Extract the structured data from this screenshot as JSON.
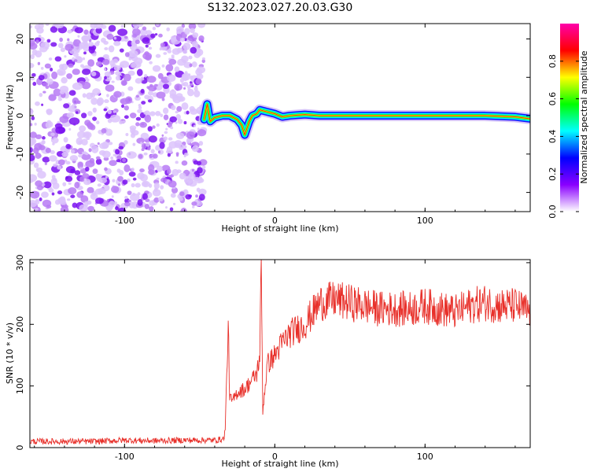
{
  "title": "S132.2023.027.20.03.G30",
  "chart_data": [
    {
      "type": "heatmap",
      "xlabel": "Height of straight line (km)",
      "ylabel": "Frequency (Hz)",
      "xlim": [
        -163,
        170
      ],
      "ylim": [
        -25,
        24
      ],
      "x_ticks": [
        -100,
        0,
        100
      ],
      "y_ticks": [
        20,
        10,
        0,
        -10,
        -20
      ],
      "x_tick_labels": [
        "-100",
        "0",
        "100"
      ],
      "y_tick_labels": [
        "20",
        "10",
        "0",
        "-10",
        "-20"
      ],
      "colorbar": {
        "label": "Normalized spectral amplitude",
        "range": [
          0.0,
          1.0
        ],
        "ticks": [
          0.0,
          0.2,
          0.4,
          0.6,
          0.8
        ],
        "tick_labels": [
          "0.0",
          "0.2",
          "0.4",
          "0.6",
          "0.8"
        ],
        "colors": [
          "#ffffff",
          "#8a00ff",
          "#0000ff",
          "#00ffff",
          "#00ff00",
          "#ffff00",
          "#ff0000",
          "#ff00aa"
        ]
      },
      "noise_region_x": [
        -163,
        -47
      ],
      "signal_trace": {
        "x": [
          -47,
          -45,
          -43,
          -40,
          -35,
          -30,
          -25,
          -22,
          -20,
          -17,
          -15,
          -12,
          -10,
          -5,
          0,
          5,
          10,
          20,
          30,
          40,
          60,
          80,
          100,
          120,
          140,
          160,
          170
        ],
        "y": [
          -1.0,
          3.0,
          -1.5,
          -0.5,
          0.0,
          0.0,
          -1.0,
          -2.5,
          -5.0,
          -1.5,
          0.0,
          0.5,
          1.5,
          1.0,
          0.5,
          -0.3,
          0.0,
          0.3,
          0.0,
          0.0,
          0.0,
          0.0,
          0.0,
          0.0,
          0.0,
          -0.3,
          -0.8
        ]
      }
    },
    {
      "type": "line",
      "xlabel": "Height of straight line (km)",
      "ylabel": "SNR (10 * v/v)",
      "xlim": [
        -163,
        170
      ],
      "ylim": [
        0,
        305
      ],
      "x_ticks": [
        -100,
        0,
        100
      ],
      "y_ticks": [
        0,
        100,
        200,
        300
      ],
      "x_tick_labels": [
        "-100",
        "0",
        "100"
      ],
      "y_tick_labels": [
        "0",
        "100",
        "200",
        "300"
      ],
      "color": "#e8302a",
      "series": [
        {
          "x": [
            -163,
            -140,
            -120,
            -100,
            -80,
            -60,
            -40,
            -34,
            -33,
            -31,
            -30,
            -28,
            -25,
            -20,
            -15,
            -12,
            -10,
            -9,
            -8,
            -5,
            0,
            5,
            10,
            20,
            30,
            40,
            50,
            60,
            70,
            80,
            90,
            100,
            110,
            120,
            130,
            140,
            150,
            160,
            170
          ],
          "y": [
            10,
            10,
            10,
            12,
            11,
            12,
            12,
            14,
            30,
            200,
            80,
            75,
            90,
            95,
            110,
            120,
            150,
            300,
            60,
            135,
            150,
            170,
            185,
            200,
            235,
            240,
            235,
            230,
            225,
            225,
            225,
            230,
            225,
            220,
            230,
            235,
            230,
            230,
            220
          ]
        }
      ]
    }
  ]
}
